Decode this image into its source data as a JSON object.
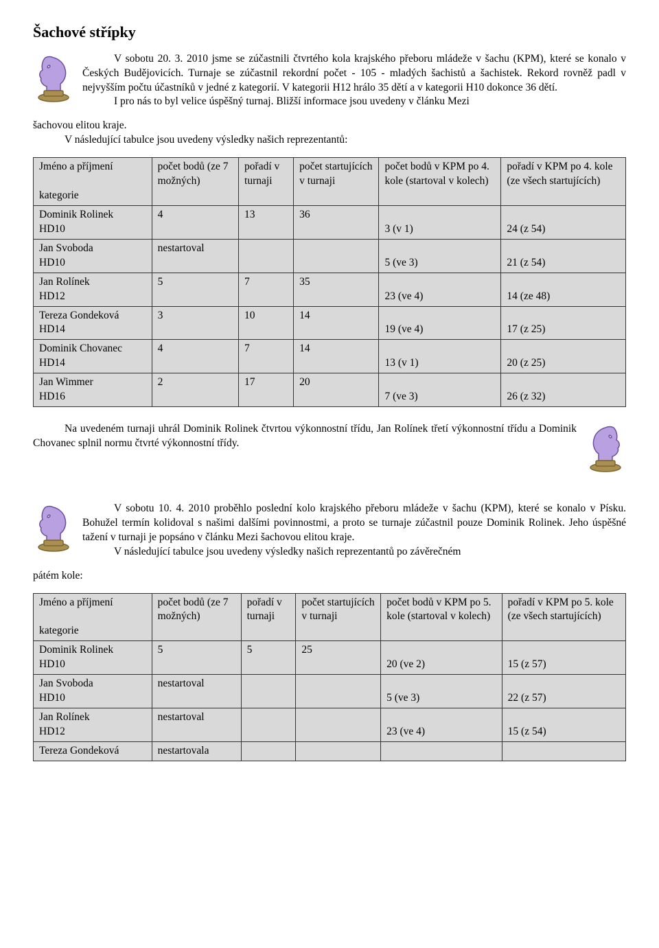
{
  "title": "Šachové střípky",
  "para1_a": "V sobotu 20. 3. 2010 jsme se zúčastnili čtvrtého kola krajského přeboru mládeže v šachu (KPM), které se konalo v Českých Budějovicích. Turnaje se zúčastnil rekordní počet - 105 - mladých šachistů a šachistek. Rekord rovněž padl v nejvyšším počtu účastníků v jedné z kategorií. V kategorii H12 hrálo 35 dětí a v kategorii H10 dokonce 36 dětí.",
  "para1_b": "I pro nás to byl velice úspěšný turnaj. Bližší informace jsou uvedeny v článku Mezi",
  "para1_c": "šachovou elitou kraje.",
  "para1_d": "V následující tabulce jsou uvedeny výsledky našich reprezentantů:",
  "table1": {
    "headers": [
      "Jméno a příjmení\n\nkategorie",
      "počet bodů (ze 7 možných)",
      "pořadí v turnaji",
      "počet startujících v turnaji",
      "počet bodů v KPM po 4. kole (startoval v kolech)",
      "pořadí v KPM po 4. kole (ze všech startujících)"
    ],
    "rows": [
      [
        "Dominik Rolinek\nHD10",
        "4",
        "13",
        "36",
        "3 (v 1)",
        "24 (z 54)"
      ],
      [
        "Jan Svoboda\nHD10",
        "nestartoval",
        "",
        "",
        "5 (ve 3)",
        "21 (z 54)"
      ],
      [
        "Jan Rolínek\nHD12",
        "5",
        "7",
        "35",
        "23 (ve 4)",
        "14 (ze 48)"
      ],
      [
        "Tereza Gondeková\nHD14",
        "3",
        "10",
        "14",
        "19 (ve 4)",
        "17 (z 25)"
      ],
      [
        "Dominik Chovanec\nHD14",
        "4",
        "7",
        "14",
        "13 (v 1)",
        "20 (z 25)"
      ],
      [
        "Jan Wimmer\nHD16",
        "2",
        "17",
        "20",
        "7 (ve 3)",
        "26 (z 32)"
      ]
    ]
  },
  "para2": "Na uvedeném turnaji uhrál Dominik Rolinek čtvrtou výkonnostní třídu, Jan Rolínek třetí výkonnostní třídu a Dominik Chovanec splnil normu čtvrté výkonnostní třídy.",
  "para3_a": "V sobotu 10. 4. 2010 proběhlo poslední kolo krajského přeboru mládeže v šachu (KPM), které se konalo v Písku. Bohužel termín kolidoval s našimi dalšími povinnostmi, a proto se turnaje zúčastnil pouze Dominik Rolinek. Jeho úspěšné tažení v turnaji je popsáno v článku Mezi šachovou elitou kraje.",
  "para3_b": "V následující tabulce jsou uvedeny výsledky našich reprezentantů po závěrečném",
  "para3_c": "pátém kole:",
  "table2": {
    "headers": [
      "Jméno a příjmení\n\nkategorie",
      "počet bodů (ze 7 možných)",
      "pořadí v turnaji",
      "počet startujících v turnaji",
      "počet bodů v KPM po 5. kole (startoval v kolech)",
      "pořadí v KPM po 5. kole (ze všech startujících)"
    ],
    "rows": [
      [
        "Dominik Rolinek\nHD10",
        "5",
        "5",
        "25",
        "20 (ve 2)",
        "15 (z 57)"
      ],
      [
        "Jan Svoboda\nHD10",
        "nestartoval",
        "",
        "",
        "5 (ve 3)",
        "22 (z 57)"
      ],
      [
        "Jan Rolínek\nHD12",
        "nestartoval",
        "",
        "",
        "23 (ve 4)",
        "15 (z 54)"
      ],
      [
        "Tereza Gondeková",
        "nestartovala",
        "",
        "",
        "",
        ""
      ]
    ]
  },
  "colors": {
    "knight_fill": "#b9a0e0",
    "knight_stroke": "#6a4fa0",
    "base_fill": "#a98f50",
    "base_stroke": "#7a6530"
  }
}
